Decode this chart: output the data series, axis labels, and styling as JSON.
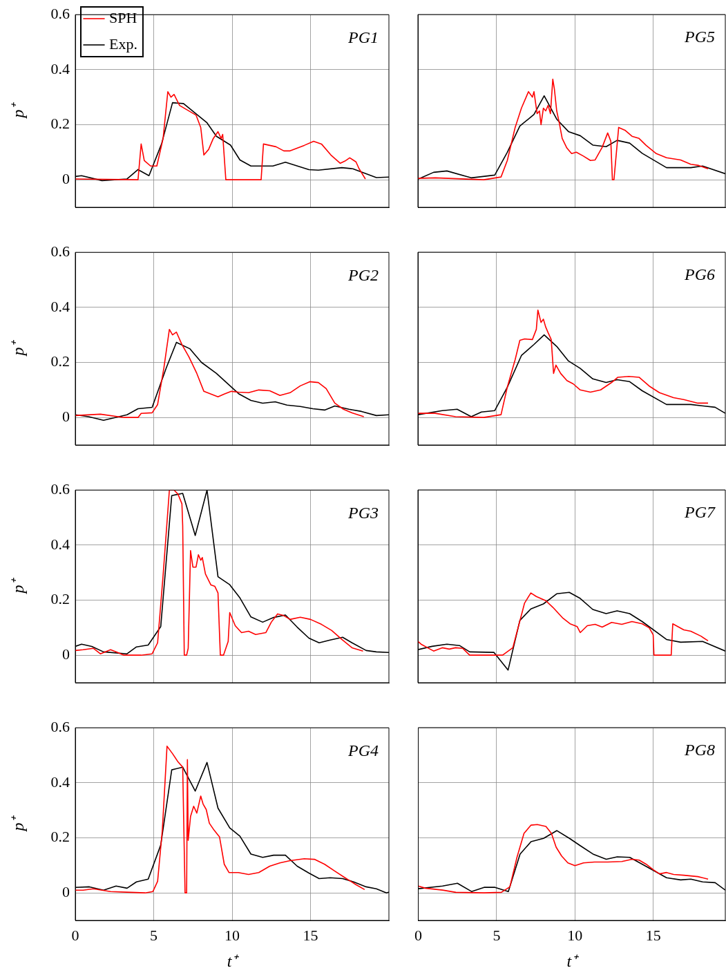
{
  "chart_data": [
    {
      "type": "line",
      "ylabel": "p⁺",
      "annotations": [
        "PG1"
      ],
      "xlim": [
        0,
        20
      ],
      "xticks": [
        0,
        5,
        10,
        15
      ],
      "ylim": [
        -0.1,
        0.6
      ],
      "yticks": [
        0,
        0.2,
        0.4,
        0.6
      ],
      "grid": true,
      "legend": "top left",
      "tick_labels": "y",
      "marker": "none",
      "line_style": "solid",
      "series": [
        {
          "name": "SPH",
          "color": "#ff0000",
          "x": [
            0,
            4,
            4.2,
            4.4,
            4.8,
            5.2,
            5.6,
            5.9,
            6.1,
            6.3,
            6.65,
            7.1,
            7.7,
            8.0,
            8.2,
            8.5,
            8.8,
            9.1,
            9.3,
            9.4,
            9.6,
            11.85,
            12.0,
            12.4,
            12.8,
            13.3,
            13.7,
            14.6,
            15.2,
            15.7,
            16.3,
            16.9,
            17.2,
            17.5,
            17.9,
            18.1,
            18.5
          ],
          "values": [
            0.003,
            0,
            0.13,
            0.07,
            0.05,
            0.05,
            0.15,
            0.32,
            0.3,
            0.31,
            0.27,
            0.255,
            0.235,
            0.19,
            0.09,
            0.11,
            0.15,
            0.175,
            0.15,
            0.165,
            0,
            0,
            0.13,
            0.125,
            0.12,
            0.105,
            0.105,
            0.125,
            0.14,
            0.13,
            0.09,
            0.06,
            0.068,
            0.08,
            0.065,
            0.04,
            0.003
          ]
        },
        {
          "name": "Exp.",
          "color": "#000000",
          "x": [
            0,
            0.4,
            1.7,
            3.3,
            4.0,
            4.7,
            5.5,
            6.2,
            6.9,
            8.4,
            9.0,
            9.9,
            10.5,
            11.2,
            12.6,
            13.4,
            14.9,
            15.5,
            17.0,
            17.7,
            19.2,
            20
          ],
          "values": [
            0.012,
            0.015,
            -0.003,
            0.003,
            0.037,
            0.015,
            0.13,
            0.28,
            0.277,
            0.207,
            0.158,
            0.126,
            0.072,
            0.05,
            0.05,
            0.064,
            0.037,
            0.035,
            0.044,
            0.04,
            0.008,
            0.01
          ]
        }
      ]
    },
    {
      "type": "line",
      "annotations": [
        "PG5"
      ],
      "xlim": [
        0,
        19.6
      ],
      "xticks": [
        0,
        5,
        10,
        15
      ],
      "ylim": [
        -0.1,
        0.6
      ],
      "yticks": [
        0,
        0.2,
        0.4,
        0.6
      ],
      "grid": true,
      "tick_labels": false,
      "marker": "none",
      "line_style": "solid",
      "series": [
        {
          "color": "#ff0000",
          "x": [
            0,
            1.1,
            4.2,
            5.3,
            5.7,
            6.2,
            6.6,
            7.05,
            7.3,
            7.4,
            7.6,
            7.75,
            7.85,
            8.0,
            8.15,
            8.3,
            8.45,
            8.6,
            8.7,
            8.85,
            9.0,
            9.2,
            9.5,
            9.8,
            10.1,
            10.55,
            11.0,
            11.3,
            11.75,
            12.1,
            12.3,
            12.4,
            12.5,
            12.8,
            13.2,
            13.65,
            14.1,
            14.55,
            15.2,
            15.85,
            16.75,
            17.4,
            17.9,
            18.5
          ],
          "values": [
            0.005,
            0.007,
            0,
            0.01,
            0.07,
            0.19,
            0.26,
            0.32,
            0.3,
            0.32,
            0.24,
            0.25,
            0.2,
            0.26,
            0.25,
            0.27,
            0.24,
            0.365,
            0.33,
            0.25,
            0.21,
            0.15,
            0.115,
            0.095,
            0.1,
            0.086,
            0.07,
            0.072,
            0.118,
            0.17,
            0.14,
            0,
            0,
            0.19,
            0.18,
            0.158,
            0.15,
            0.125,
            0.095,
            0.08,
            0.072,
            0.056,
            0.052,
            0.04
          ]
        },
        {
          "color": "#000000",
          "x": [
            0,
            1.0,
            1.85,
            3.4,
            4.9,
            5.7,
            6.5,
            7.4,
            8.05,
            8.85,
            9.6,
            10.35,
            11.15,
            12.0,
            12.7,
            13.5,
            14.3,
            15.85,
            17.4,
            18.15,
            19.6
          ],
          "values": [
            0.002,
            0.027,
            0.032,
            0.007,
            0.017,
            0.1,
            0.195,
            0.237,
            0.305,
            0.22,
            0.175,
            0.16,
            0.126,
            0.12,
            0.143,
            0.133,
            0.096,
            0.044,
            0.044,
            0.05,
            0.022
          ]
        }
      ]
    },
    {
      "type": "line",
      "ylabel": "p⁺",
      "annotations": [
        "PG2"
      ],
      "xlim": [
        0,
        20
      ],
      "xticks": [
        0,
        5,
        10,
        15
      ],
      "ylim": [
        -0.1,
        0.6
      ],
      "yticks": [
        0,
        0.2,
        0.4,
        0.6
      ],
      "grid": true,
      "tick_labels": "y",
      "marker": "none",
      "line_style": "solid",
      "series": [
        {
          "color": "#ff0000",
          "x": [
            0,
            1.6,
            3.1,
            4.0,
            4.2,
            4.9,
            5.25,
            5.65,
            6.0,
            6.2,
            6.45,
            6.8,
            7.25,
            7.75,
            8.2,
            8.65,
            9.1,
            9.5,
            9.95,
            10.4,
            11.05,
            11.7,
            12.4,
            13.05,
            13.7,
            14.35,
            14.95,
            15.5,
            16.0,
            16.55,
            17.1,
            17.65,
            18.4
          ],
          "values": [
            0.007,
            0.012,
            0,
            0,
            0.015,
            0.017,
            0.047,
            0.18,
            0.32,
            0.3,
            0.31,
            0.265,
            0.22,
            0.16,
            0.095,
            0.085,
            0.075,
            0.085,
            0.095,
            0.092,
            0.09,
            0.1,
            0.097,
            0.08,
            0.09,
            0.115,
            0.13,
            0.127,
            0.105,
            0.052,
            0.03,
            0.017,
            0.003
          ]
        },
        {
          "color": "#000000",
          "x": [
            0,
            0.85,
            1.8,
            3.3,
            4.0,
            4.9,
            5.8,
            6.45,
            7.3,
            8.05,
            9.0,
            10.45,
            11.2,
            11.95,
            12.75,
            13.5,
            14.35,
            15.15,
            15.9,
            16.55,
            17.45,
            18.25,
            19.2,
            20
          ],
          "values": [
            0.01,
            0.003,
            -0.01,
            0.01,
            0.032,
            0.037,
            0.18,
            0.273,
            0.25,
            0.2,
            0.16,
            0.085,
            0.062,
            0.052,
            0.057,
            0.045,
            0.04,
            0.032,
            0.027,
            0.042,
            0.03,
            0.022,
            0.007,
            0.01
          ]
        }
      ]
    },
    {
      "type": "line",
      "annotations": [
        "PG6"
      ],
      "xlim": [
        0,
        19.6
      ],
      "xticks": [
        0,
        5,
        10,
        15
      ],
      "ylim": [
        -0.1,
        0.6
      ],
      "yticks": [
        0,
        0.2,
        0.4,
        0.6
      ],
      "grid": true,
      "tick_labels": false,
      "marker": "none",
      "line_style": "solid",
      "series": [
        {
          "color": "#ff0000",
          "x": [
            0,
            1.1,
            2.4,
            4.2,
            5.3,
            5.7,
            6.2,
            6.5,
            6.8,
            7.3,
            7.55,
            7.65,
            7.85,
            8.0,
            8.15,
            8.3,
            8.5,
            8.65,
            8.8,
            9.1,
            9.5,
            9.9,
            10.35,
            11.0,
            11.65,
            12.35,
            12.75,
            13.45,
            14.1,
            14.75,
            15.4,
            16.3,
            16.95,
            17.85,
            18.5
          ],
          "values": [
            0.015,
            0.015,
            0.003,
            0,
            0.01,
            0.11,
            0.21,
            0.28,
            0.285,
            0.283,
            0.32,
            0.39,
            0.345,
            0.357,
            0.328,
            0.308,
            0.283,
            0.16,
            0.19,
            0.16,
            0.134,
            0.122,
            0.1,
            0.092,
            0.1,
            0.127,
            0.146,
            0.149,
            0.146,
            0.114,
            0.09,
            0.072,
            0.065,
            0.052,
            0.052
          ]
        },
        {
          "color": "#000000",
          "x": [
            0,
            1.55,
            2.5,
            3.4,
            4.05,
            4.9,
            5.7,
            6.6,
            7.4,
            8.05,
            8.85,
            9.6,
            10.35,
            11.15,
            12.0,
            12.7,
            13.5,
            14.3,
            15.85,
            17.4,
            18.95,
            19.6
          ],
          "values": [
            0.01,
            0.025,
            0.03,
            0.003,
            0.02,
            0.025,
            0.11,
            0.225,
            0.265,
            0.3,
            0.258,
            0.205,
            0.178,
            0.14,
            0.127,
            0.137,
            0.13,
            0.097,
            0.047,
            0.047,
            0.037,
            0.015
          ]
        }
      ]
    },
    {
      "type": "line",
      "ylabel": "p⁺",
      "annotations": [
        "PG3"
      ],
      "xlim": [
        0,
        20
      ],
      "xticks": [
        0,
        5,
        10,
        15
      ],
      "ylim": [
        -0.1,
        0.6
      ],
      "yticks": [
        0,
        0.2,
        0.4,
        0.6
      ],
      "grid": true,
      "tick_labels": "y",
      "marker": "none",
      "line_style": "solid",
      "series": [
        {
          "color": "#ff0000",
          "x": [
            0,
            0.5,
            1.15,
            1.6,
            2.25,
            2.7,
            3.1,
            4.2,
            4.9,
            5.25,
            5.6,
            6.0,
            6.3,
            6.55,
            6.8,
            6.85,
            6.95,
            7.1,
            7.2,
            7.35,
            7.5,
            7.7,
            7.85,
            8.0,
            8.1,
            8.3,
            8.65,
            8.9,
            9.1,
            9.25,
            9.45,
            9.75,
            9.85,
            10.2,
            10.6,
            11.05,
            11.5,
            12.15,
            12.5,
            12.9,
            13.25,
            13.7,
            14.35,
            15.0,
            15.7,
            16.35,
            17.0,
            17.65,
            18.35
          ],
          "values": [
            0.017,
            0.02,
            0.025,
            0.005,
            0.02,
            0.01,
            0,
            0,
            0.005,
            0.045,
            0.29,
            0.6,
            0.6,
            0.585,
            0.55,
            0.47,
            0,
            0,
            0.025,
            0.38,
            0.32,
            0.32,
            0.365,
            0.345,
            0.355,
            0.295,
            0.255,
            0.25,
            0.226,
            0,
            0,
            0.05,
            0.155,
            0.107,
            0.082,
            0.087,
            0.075,
            0.082,
            0.12,
            0.15,
            0.145,
            0.13,
            0.138,
            0.13,
            0.112,
            0.09,
            0.057,
            0.027,
            0.015
          ]
        },
        {
          "color": "#000000",
          "x": [
            0,
            0.4,
            1.05,
            1.8,
            3.3,
            3.9,
            4.65,
            5.45,
            6.15,
            6.85,
            7.65,
            8.4,
            9.1,
            9.85,
            10.5,
            11.2,
            11.95,
            12.65,
            13.4,
            14.15,
            14.9,
            15.55,
            16.25,
            17.05,
            17.65,
            18.55,
            19.2,
            20
          ],
          "values": [
            0.032,
            0.04,
            0.032,
            0.012,
            0.005,
            0.03,
            0.037,
            0.104,
            0.58,
            0.588,
            0.435,
            0.6,
            0.285,
            0.256,
            0.208,
            0.139,
            0.12,
            0.137,
            0.146,
            0.102,
            0.062,
            0.045,
            0.055,
            0.065,
            0.045,
            0.017,
            0.012,
            0.01
          ]
        }
      ]
    },
    {
      "type": "line",
      "annotations": [
        "PG7"
      ],
      "xlim": [
        0,
        19.6
      ],
      "xticks": [
        0,
        5,
        10,
        15
      ],
      "ylim": [
        -0.1,
        0.6
      ],
      "yticks": [
        0,
        0.2,
        0.4,
        0.6
      ],
      "grid": true,
      "tick_labels": false,
      "marker": "none",
      "line_style": "solid",
      "series": [
        {
          "color": "#ff0000",
          "x": [
            0,
            0.2,
            1.0,
            1.55,
            2.0,
            2.4,
            2.85,
            3.3,
            5.4,
            6.05,
            6.5,
            6.8,
            7.2,
            7.55,
            8.15,
            8.6,
            9.25,
            9.7,
            10.15,
            10.35,
            10.8,
            11.3,
            11.75,
            12.35,
            13.0,
            13.65,
            14.3,
            14.75,
            15.0,
            15.05,
            16.15,
            16.25,
            16.95,
            17.4,
            18.05,
            18.5
          ],
          "values": [
            0.05,
            0.04,
            0.015,
            0.027,
            0.022,
            0.027,
            0.025,
            0,
            0,
            0.027,
            0.124,
            0.189,
            0.226,
            0.213,
            0.198,
            0.174,
            0.134,
            0.114,
            0.104,
            0.082,
            0.107,
            0.112,
            0.102,
            0.119,
            0.112,
            0.122,
            0.114,
            0.099,
            0.074,
            0,
            0,
            0.114,
            0.092,
            0.087,
            0.069,
            0.052
          ]
        },
        {
          "color": "#000000",
          "x": [
            0,
            0.9,
            1.85,
            2.65,
            3.3,
            4.85,
            5.75,
            6.5,
            7.2,
            8.0,
            8.85,
            9.65,
            10.35,
            11.15,
            12.0,
            12.7,
            13.5,
            14.3,
            15.85,
            16.75,
            18.15,
            19.6
          ],
          "values": [
            0.02,
            0.032,
            0.04,
            0.035,
            0.012,
            0.01,
            -0.054,
            0.126,
            0.168,
            0.186,
            0.223,
            0.228,
            0.206,
            0.166,
            0.151,
            0.161,
            0.151,
            0.122,
            0.057,
            0.047,
            0.05,
            0.015
          ]
        }
      ]
    },
    {
      "type": "line",
      "xlabel": "t⁺",
      "ylabel": "p⁺",
      "annotations": [
        "PG4"
      ],
      "xlim": [
        0,
        20
      ],
      "xticks": [
        0,
        5,
        10,
        15
      ],
      "ylim": [
        -0.1,
        0.6
      ],
      "yticks": [
        0,
        0.2,
        0.4,
        0.6
      ],
      "grid": true,
      "marker": "none",
      "line_style": "solid",
      "series": [
        {
          "color": "#ff0000",
          "x": [
            0,
            0.5,
            1.15,
            1.7,
            2.25,
            3.55,
            4.45,
            4.95,
            5.25,
            5.55,
            5.85,
            6.2,
            6.55,
            6.85,
            7.0,
            7.1,
            7.15,
            7.2,
            7.35,
            7.55,
            7.75,
            8.0,
            8.15,
            8.35,
            8.55,
            8.85,
            9.2,
            9.5,
            9.8,
            10.4,
            11.05,
            11.7,
            12.4,
            13.05,
            13.7,
            14.6,
            15.25,
            15.9,
            16.55,
            17.2,
            17.9,
            18.45
          ],
          "values": [
            0.01,
            0.01,
            0.015,
            0.01,
            0.005,
            0.002,
            0,
            0.005,
            0.042,
            0.228,
            0.533,
            0.506,
            0.476,
            0.457,
            0,
            0,
            0.484,
            0.191,
            0.278,
            0.315,
            0.29,
            0.352,
            0.323,
            0.303,
            0.253,
            0.228,
            0.203,
            0.104,
            0.074,
            0.074,
            0.067,
            0.074,
            0.097,
            0.109,
            0.117,
            0.124,
            0.122,
            0.104,
            0.079,
            0.055,
            0.03,
            0.012
          ]
        },
        {
          "color": "#000000",
          "x": [
            0,
            0.9,
            1.8,
            2.6,
            3.3,
            3.9,
            4.65,
            5.45,
            6.15,
            6.85,
            7.65,
            8.4,
            9.1,
            9.85,
            10.5,
            11.2,
            11.95,
            12.65,
            13.4,
            14.15,
            14.9,
            15.55,
            16.25,
            17.05,
            17.75,
            18.55,
            19.2,
            19.85,
            20
          ],
          "values": [
            0.02,
            0.022,
            0.01,
            0.025,
            0.017,
            0.04,
            0.05,
            0.174,
            0.447,
            0.457,
            0.37,
            0.474,
            0.308,
            0.236,
            0.206,
            0.141,
            0.129,
            0.137,
            0.137,
            0.097,
            0.072,
            0.052,
            0.055,
            0.052,
            0.04,
            0.022,
            0.015,
            0,
            0.003
          ]
        }
      ]
    },
    {
      "type": "line",
      "xlabel": "t⁺",
      "annotations": [
        "PG8"
      ],
      "xlim": [
        0,
        19.6
      ],
      "xticks": [
        0,
        5,
        10,
        15
      ],
      "ylim": [
        -0.1,
        0.6
      ],
      "yticks": [
        0,
        0.2,
        0.4,
        0.6
      ],
      "grid": true,
      "tick_labels": "x",
      "marker": "none",
      "line_style": "solid",
      "series": [
        {
          "color": "#ff0000",
          "x": [
            0,
            0.45,
            1.55,
            2.4,
            4.2,
            5.3,
            5.85,
            6.3,
            6.75,
            7.2,
            7.6,
            8.15,
            8.5,
            8.8,
            9.15,
            9.55,
            10.0,
            10.55,
            11.25,
            12.1,
            13.0,
            13.65,
            14.1,
            14.55,
            15.0,
            15.4,
            15.85,
            16.3,
            16.95,
            17.85,
            18.5
          ],
          "values": [
            0.025,
            0.017,
            0.01,
            0.002,
            0,
            0.002,
            0.022,
            0.129,
            0.216,
            0.246,
            0.248,
            0.241,
            0.216,
            0.166,
            0.134,
            0.109,
            0.099,
            0.109,
            0.112,
            0.112,
            0.114,
            0.122,
            0.119,
            0.104,
            0.084,
            0.069,
            0.074,
            0.067,
            0.064,
            0.059,
            0.05
          ]
        },
        {
          "color": "#000000",
          "x": [
            0,
            1.55,
            2.5,
            3.4,
            4.2,
            4.9,
            5.75,
            6.5,
            7.2,
            8.0,
            8.85,
            9.65,
            10.35,
            11.15,
            12.0,
            12.7,
            13.5,
            14.3,
            15.85,
            16.75,
            17.4,
            18.15,
            18.95,
            19.6
          ],
          "values": [
            0.015,
            0.025,
            0.035,
            0.005,
            0.02,
            0.02,
            0.005,
            0.141,
            0.186,
            0.198,
            0.226,
            0.198,
            0.171,
            0.141,
            0.122,
            0.131,
            0.129,
            0.104,
            0.055,
            0.047,
            0.05,
            0.04,
            0.037,
            0.01
          ]
        }
      ]
    }
  ]
}
